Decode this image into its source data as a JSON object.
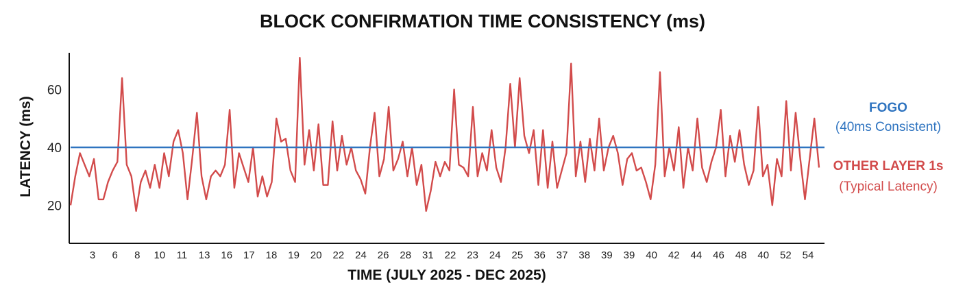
{
  "chart_data": {
    "type": "line",
    "title": "BLOCK CONFIRMATION TIME CONSISTENCY (ms)",
    "xlabel": "TIME (JULY 2025 - DEC 2025)",
    "ylabel": "LATENCY (ms)",
    "ylim": [
      8,
      72
    ],
    "yticks": [
      20,
      40,
      60
    ],
    "x_tick_labels": [
      "3",
      "6",
      "8",
      "10",
      "11",
      "13",
      "16",
      "17",
      "18",
      "19",
      "20",
      "22",
      "24",
      "26",
      "28",
      "31",
      "22",
      "23",
      "24",
      "25",
      "36",
      "37",
      "38",
      "39",
      "39",
      "40",
      "42",
      "44",
      "46",
      "48",
      "40",
      "52",
      "54"
    ],
    "grid": false,
    "legend_placement": "right",
    "series": [
      {
        "name": "FOGO",
        "subtitle": "(40ms Consistent)",
        "color": "#2f74c0",
        "values": [
          40,
          40
        ]
      },
      {
        "name": "OTHER LAYER 1s",
        "subtitle": "(Typical Latency)",
        "color": "#d24b4b",
        "values": [
          20,
          30,
          38,
          34,
          30,
          36,
          22,
          22,
          28,
          32,
          35,
          64,
          34,
          30,
          18,
          28,
          32,
          26,
          34,
          26,
          38,
          30,
          42,
          46,
          38,
          22,
          36,
          52,
          30,
          22,
          30,
          32,
          30,
          34,
          53,
          26,
          38,
          33,
          28,
          40,
          23,
          30,
          23,
          28,
          50,
          42,
          43,
          32,
          28,
          71,
          34,
          46,
          32,
          48,
          27,
          27,
          49,
          32,
          44,
          34,
          40,
          32,
          29,
          24,
          40,
          52,
          30,
          36,
          54,
          32,
          36,
          42,
          30,
          40,
          27,
          34,
          18,
          25,
          35,
          30,
          35,
          32,
          60,
          34,
          33,
          30,
          54,
          30,
          38,
          32,
          46,
          33,
          28,
          40,
          62,
          40,
          64,
          44,
          38,
          46,
          27,
          46,
          26,
          42,
          26,
          32,
          38,
          69,
          30,
          42,
          28,
          43,
          32,
          50,
          32,
          40,
          44,
          38,
          27,
          36,
          38,
          32,
          33,
          28,
          22,
          34,
          66,
          30,
          40,
          32,
          47,
          26,
          40,
          32,
          50,
          33,
          28,
          35,
          40,
          53,
          30,
          44,
          35,
          46,
          34,
          27,
          32,
          54,
          30,
          34,
          20,
          36,
          30,
          56,
          32,
          52,
          36,
          22,
          36,
          50,
          33
        ]
      }
    ]
  }
}
